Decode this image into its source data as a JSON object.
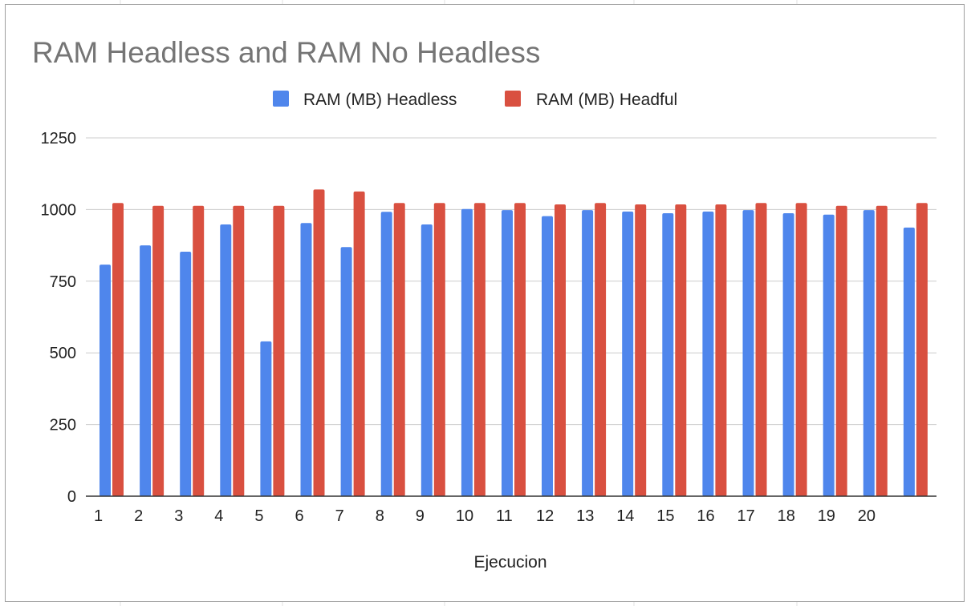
{
  "chart_data": {
    "type": "bar",
    "title": "RAM Headless and RAM No Headless",
    "xlabel": "Ejecucion",
    "ylabel": "",
    "ylim": [
      0,
      1250
    ],
    "yticks": [
      0,
      250,
      500,
      750,
      1000,
      1250
    ],
    "grid": true,
    "legend_position": "top",
    "x_tick_labels": [
      "1",
      "2",
      "3",
      "4",
      "5",
      "6",
      "7",
      "8",
      "9",
      "10",
      "11",
      "12",
      "13",
      "14",
      "15",
      "16",
      "17",
      "18",
      "19",
      "20",
      ""
    ],
    "series": [
      {
        "name": "RAM (MB) Headless",
        "color": "#4f86ec",
        "values": [
          808,
          875,
          853,
          948,
          540,
          953,
          869,
          992,
          948,
          1002,
          998,
          977,
          998,
          993,
          987,
          993,
          998,
          987,
          982,
          998,
          937
        ]
      },
      {
        "name": "RAM (MB) Headful",
        "color": "#d95040",
        "values": [
          1023,
          1013,
          1013,
          1013,
          1013,
          1070,
          1063,
          1023,
          1023,
          1023,
          1023,
          1018,
          1023,
          1018,
          1018,
          1018,
          1023,
          1023,
          1013,
          1013,
          1023
        ]
      }
    ]
  }
}
